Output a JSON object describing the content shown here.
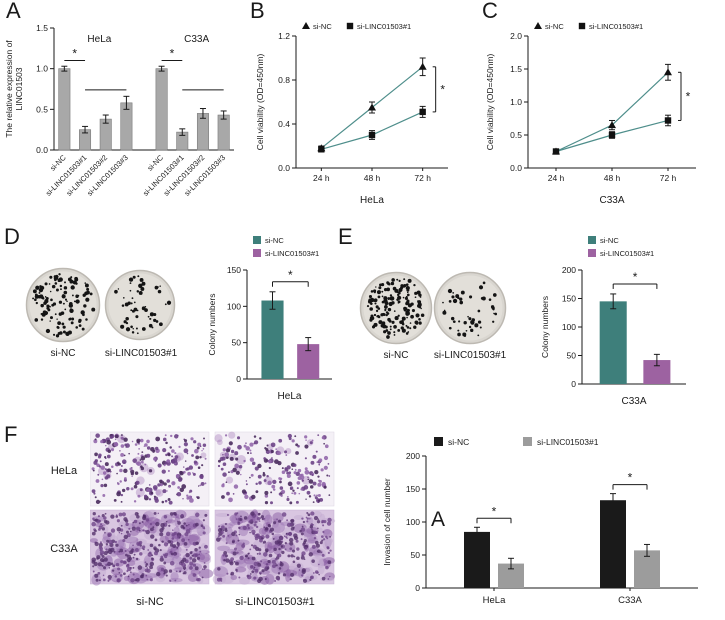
{
  "figure": {
    "background": "#ffffff"
  },
  "panels": {
    "A": {
      "letter": "A"
    },
    "B": {
      "letter": "B"
    },
    "C": {
      "letter": "C"
    },
    "D": {
      "letter": "D",
      "images": {
        "labels": [
          "si-NC",
          "si-LINC01503#1"
        ],
        "dot_counts": [
          110,
          48
        ]
      }
    },
    "E": {
      "letter": "E",
      "images": {
        "labels": [
          "si-NC",
          "si-LINC01503#1"
        ],
        "dot_counts": [
          145,
          42
        ]
      }
    },
    "F": {
      "letter": "F",
      "images": {
        "row_labels": [
          "HeLa",
          "C33A"
        ],
        "col_labels": [
          "si-NC",
          "si-LINC01503#1"
        ]
      }
    }
  },
  "chart_data": [
    {
      "panel": "A",
      "type": "bar",
      "ylabel_lines": [
        "The relative expression of",
        "LINC01503"
      ],
      "ylim": [
        0,
        1.5
      ],
      "yticks": [
        0,
        0.5,
        1.0,
        1.5
      ],
      "ytick_labels": [
        "0.0",
        "0.5",
        "1.0",
        "1.5"
      ],
      "group_labels": [
        "HeLa",
        "C33A"
      ],
      "categories": [
        "si-NC",
        "si-LINC01503#1",
        "si-LINC01503#2",
        "si-LINC01503#3",
        "si-NC",
        "si-LINC01503#1",
        "si-LINC01503#2",
        "si-LINC01503#3"
      ],
      "values": [
        1.0,
        0.25,
        0.38,
        0.58,
        1.0,
        0.22,
        0.45,
        0.43
      ],
      "errors": [
        0.03,
        0.04,
        0.05,
        0.08,
        0.03,
        0.04,
        0.06,
        0.05
      ],
      "bar_color": "#a8a8a8",
      "sig_star": "*"
    },
    {
      "panel": "B",
      "type": "line",
      "ylabel": "Cell viability (OD=450nm)",
      "xlabel": "HeLa",
      "x_labels": [
        "24 h",
        "48 h",
        "72 h"
      ],
      "ylim": [
        0,
        1.2
      ],
      "yticks": [
        0,
        0.4,
        0.8,
        1.2
      ],
      "ytick_labels": [
        "0.0",
        "0.4",
        "0.8",
        "1.2"
      ],
      "line_color": "#4e8e8b",
      "sig_star": "*",
      "series": [
        {
          "name": "si-NC",
          "marker": "triangle",
          "values": [
            0.18,
            0.55,
            0.92
          ],
          "errors": [
            0.02,
            0.05,
            0.08
          ]
        },
        {
          "name": "si-LINC01503#1",
          "marker": "square",
          "values": [
            0.17,
            0.3,
            0.51
          ],
          "errors": [
            0.02,
            0.04,
            0.05
          ]
        }
      ]
    },
    {
      "panel": "C",
      "type": "line",
      "ylabel": "Cell viability (OD=450nm)",
      "xlabel": "C33A",
      "x_labels": [
        "24 h",
        "48 h",
        "72 h"
      ],
      "ylim": [
        0,
        2.0
      ],
      "yticks": [
        0,
        0.5,
        1.0,
        1.5,
        2.0
      ],
      "ytick_labels": [
        "0.0",
        "0.5",
        "1.0",
        "1.5",
        "2.0"
      ],
      "line_color": "#4e8e8b",
      "sig_star": "*",
      "series": [
        {
          "name": "si-NC",
          "marker": "triangle",
          "values": [
            0.25,
            0.65,
            1.45
          ],
          "errors": [
            0.03,
            0.07,
            0.12
          ]
        },
        {
          "name": "si-LINC01503#1",
          "marker": "square",
          "values": [
            0.25,
            0.5,
            0.72
          ],
          "errors": [
            0.03,
            0.05,
            0.08
          ]
        }
      ]
    },
    {
      "panel": "D",
      "type": "bar2",
      "ylabel": "Colony numbers",
      "xlabel": "HeLa",
      "ylim": [
        0,
        150
      ],
      "yticks": [
        0,
        50,
        100,
        150
      ],
      "ytick_labels": [
        "0",
        "50",
        "100",
        "150"
      ],
      "sig_star": "*",
      "series": [
        {
          "name": "si-NC",
          "value": 108,
          "error": 12,
          "color": "#3e7f7b"
        },
        {
          "name": "si-LINC01503#1",
          "value": 48,
          "error": 9,
          "color": "#9d62a1"
        }
      ]
    },
    {
      "panel": "E",
      "type": "bar2",
      "ylabel": "Colony numbers",
      "xlabel": "C33A",
      "ylim": [
        0,
        200
      ],
      "yticks": [
        0,
        50,
        100,
        150,
        200
      ],
      "ytick_labels": [
        "0",
        "50",
        "100",
        "150",
        "200"
      ],
      "sig_star": "*",
      "series": [
        {
          "name": "si-NC",
          "value": 145,
          "error": 13,
          "color": "#3e7f7b"
        },
        {
          "name": "si-LINC01503#1",
          "value": 42,
          "error": 10,
          "color": "#9d62a1"
        }
      ]
    },
    {
      "panel": "F",
      "type": "grouped_bar",
      "ylabel": "Invasion of cell number",
      "categories": [
        "HeLa",
        "C33A"
      ],
      "ylim": [
        0,
        200
      ],
      "yticks": [
        0,
        50,
        100,
        150,
        200
      ],
      "ytick_labels": [
        "0",
        "50",
        "100",
        "150",
        "200"
      ],
      "annotation": "A",
      "sig_star": "*",
      "series": [
        {
          "name": "si-NC",
          "color": "#1a1a1a",
          "values": [
            85,
            133
          ],
          "errors": [
            7,
            10
          ]
        },
        {
          "name": "si-LINC01503#1",
          "color": "#9c9c9c",
          "values": [
            37,
            57
          ],
          "errors": [
            8,
            9
          ]
        }
      ]
    }
  ]
}
